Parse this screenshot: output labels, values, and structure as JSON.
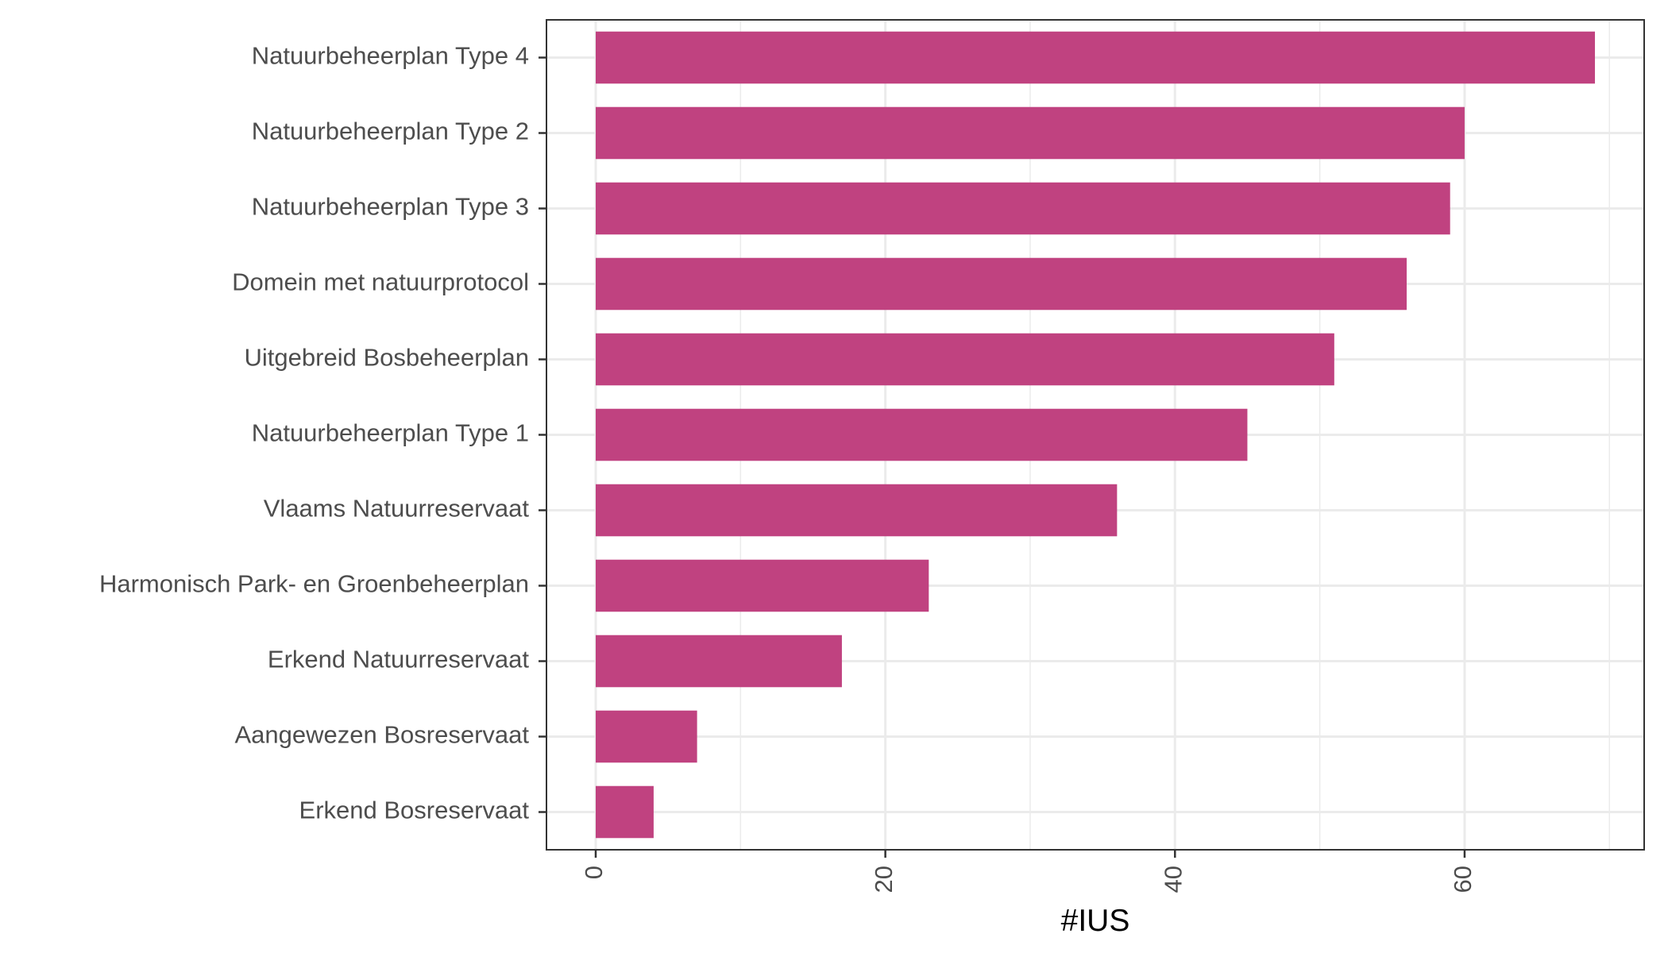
{
  "chart_data": {
    "type": "bar",
    "orientation": "horizontal",
    "categories": [
      "Natuurbeheerplan Type 4",
      "Natuurbeheerplan Type 2",
      "Natuurbeheerplan Type 3",
      "Domein met natuurprotocol",
      "Uitgebreid Bosbeheerplan",
      "Natuurbeheerplan Type 1",
      "Vlaams Natuurreservaat",
      "Harmonisch Park- en Groenbeheerplan",
      "Erkend Natuurreservaat",
      "Aangewezen Bosreservaat",
      "Erkend Bosreservaat"
    ],
    "values": [
      69,
      60,
      59,
      56,
      51,
      45,
      36,
      23,
      17,
      7,
      4
    ],
    "title": "",
    "xlabel": "#IUS",
    "ylabel": "",
    "xlim": [
      -3.4,
      72.4
    ],
    "x_ticks": [
      0,
      20,
      40,
      60
    ],
    "x_tick_labels": [
      "0",
      "20",
      "40",
      "60"
    ],
    "x_minor_gridlines": [
      10,
      30,
      50,
      70
    ],
    "grid": true,
    "legend": "none",
    "colors": {
      "bar": "#c04280",
      "grid": "#ebebeb",
      "panel_border": "#333333",
      "text": "#4d4d4d",
      "title": "#000000"
    }
  }
}
